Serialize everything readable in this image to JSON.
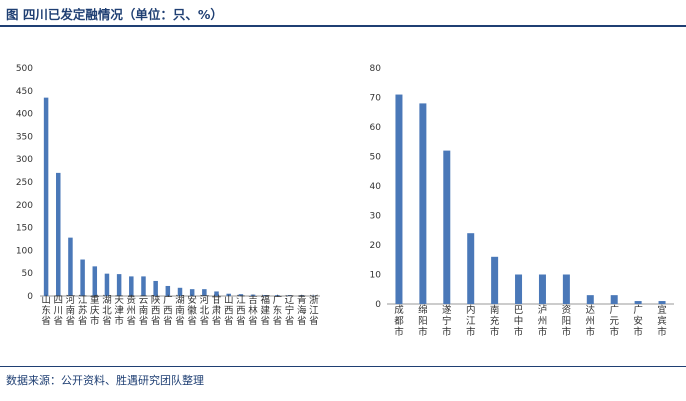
{
  "header": {
    "title": "图  四川已发定融情况（单位：只、%）"
  },
  "footer": {
    "source": "数据来源：公开资料、胜遇研究团队整理"
  },
  "colors": {
    "bar": "#4a78b8",
    "accent": "#1f3f73",
    "axis": "#999999"
  },
  "chart_data": [
    {
      "type": "bar",
      "categories": [
        "山东省",
        "四川省",
        "河南省",
        "江苏省",
        "重庆市",
        "湖北省",
        "天津市",
        "贵州省",
        "云南省",
        "陕西省",
        "广西省",
        "湖南省",
        "安徽省",
        "河北省",
        "甘肃省",
        "山西省",
        "江西省",
        "吉林省",
        "福建省",
        "广东省",
        "辽宁省",
        "青海省",
        "浙江省"
      ],
      "values": [
        435,
        270,
        128,
        80,
        65,
        49,
        48,
        43,
        43,
        33,
        22,
        18,
        15,
        15,
        10,
        5,
        4,
        3,
        2,
        2,
        2,
        2,
        1
      ],
      "yticks": [
        0,
        50,
        100,
        150,
        200,
        250,
        300,
        350,
        400,
        450,
        500
      ],
      "ylim": [
        0,
        500
      ]
    },
    {
      "type": "bar",
      "categories": [
        "成都市",
        "绵阳市",
        "遂宁市",
        "内江市",
        "南充市",
        "巴中市",
        "泸州市",
        "资阳市",
        "达州市",
        "广元市",
        "广安市",
        "宜宾市"
      ],
      "values": [
        71,
        68,
        52,
        24,
        16,
        10,
        10,
        10,
        3,
        3,
        1,
        1
      ],
      "yticks": [
        0,
        10,
        20,
        30,
        40,
        50,
        60,
        70,
        80
      ],
      "ylim": [
        0,
        80
      ]
    }
  ]
}
